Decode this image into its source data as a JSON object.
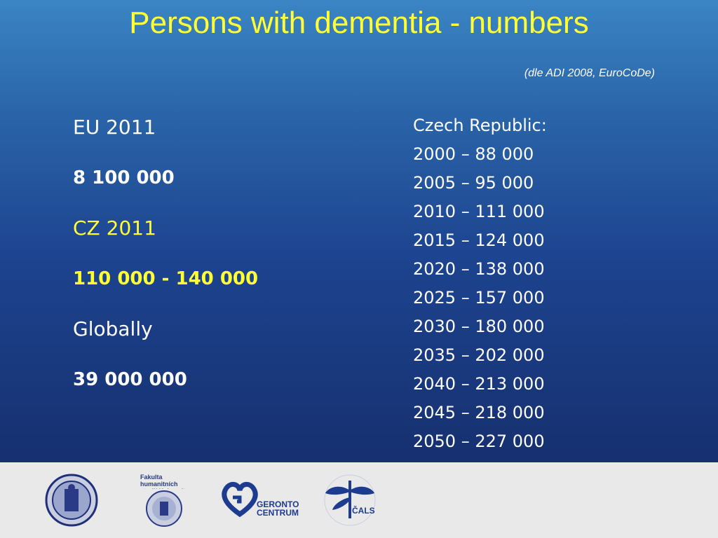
{
  "slide": {
    "title": "Persons with dementia - numbers",
    "source": "(dle ADI 2008, EuroCoDe)"
  },
  "left": {
    "eu_label": "EU 2011",
    "eu_value": "8 100 000",
    "cz_label": "CZ  2011",
    "cz_value": "110 000 - 140 000",
    "global_label": "Globally",
    "global_value": "39 000 000"
  },
  "right": {
    "heading": "Czech Republic:",
    "rows": [
      "2000 –  88 000",
      "2005 –  95 000",
      "2010 – 111 000",
      "2015 – 124 000",
      "2020 – 138 000",
      "2025 – 157 000",
      "2030 – 180 000",
      "2035 – 202 000",
      "2040 – 213 000",
      "2045 – 218 000",
      "2050 – 227 000"
    ]
  },
  "footer": {
    "logo2_text": "Fakulta humanitních studií Univerzita Karlovy",
    "logo3_text": "GERONTO CENTRUM",
    "logo4_text": "ČALS"
  },
  "colors": {
    "title": "#ffff33",
    "accent_yellow": "#ffff33",
    "text": "#ffffff",
    "bg_top": "#3a85c4",
    "bg_bottom": "#16306f",
    "footer": "#e9e9e9"
  }
}
